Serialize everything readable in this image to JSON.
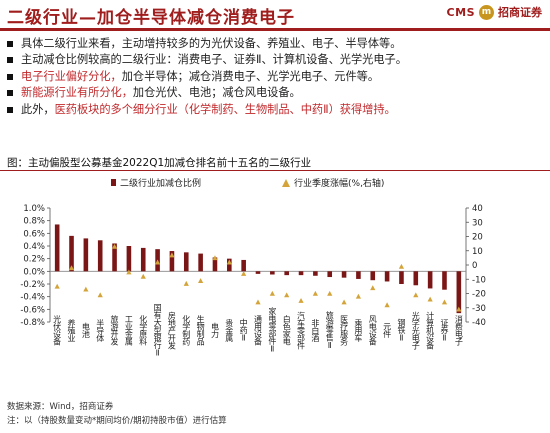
{
  "header": {
    "title": "二级行业—加仓半导体减仓消费电子",
    "logo_cms": "CMS",
    "logo_badge": "m",
    "logo_name": "招商证券"
  },
  "bullets": [
    {
      "parts": [
        {
          "text": "具体二级行业来看，主动增持较多的为光伏设备、养殖业、电子、半导体等。",
          "red": false
        }
      ]
    },
    {
      "parts": [
        {
          "text": "主动减仓比例较高的二级行业：消费电子、证券Ⅱ、计算机设备、光学光电子。",
          "red": false
        }
      ]
    },
    {
      "parts": [
        {
          "text": "电子行业偏好分化，",
          "red": true
        },
        {
          "text": "加仓半导体；减仓消费电子、光学光电子、元件等。",
          "red": false
        }
      ]
    },
    {
      "parts": [
        {
          "text": "新能源行业有所分化，",
          "red": true
        },
        {
          "text": "加仓光伏、电池；减仓风电设备。",
          "red": false
        }
      ]
    },
    {
      "parts": [
        {
          "text": "此外，",
          "red": false
        },
        {
          "text": "医药板块的多个细分行业（化学制药、生物制品、中药Ⅱ）获得增持。",
          "red": true
        }
      ]
    }
  ],
  "figure": {
    "caption": "图：主动偏股型公募基金2022Q1加减仓排名前十五名的二级行业",
    "source": "数据来源：Wind，招商证券",
    "note": "注：以（持股数量变动*期间均价/期初持股市值）进行估算"
  },
  "colors": {
    "bar": "#7b1616",
    "marker": "#d4a43a",
    "accent": "#a01d1d"
  },
  "chart_data": {
    "type": "bar",
    "categories": [
      "光伏设备",
      "养殖业",
      "电池",
      "半导体",
      "旅游开发",
      "工业金属",
      "化学原料",
      "国有大型银行Ⅱ",
      "房地产开发",
      "化学制药",
      "生物制品",
      "电力",
      "贵金属",
      "中药Ⅱ",
      "通用设备",
      "家电零部件Ⅱ",
      "白色家电",
      "汽车零部件",
      "非白酒",
      "旅游零售Ⅱ",
      "医疗服务",
      "乘用车",
      "风电设备",
      "元件",
      "钢铁Ⅱ",
      "光学光电子",
      "计算机设备",
      "证券Ⅱ",
      "消费电子"
    ],
    "series": [
      {
        "name": "二级行业加减仓比例",
        "axis": "left",
        "values": [
          0.74,
          0.56,
          0.52,
          0.49,
          0.44,
          0.4,
          0.37,
          0.35,
          0.32,
          0.3,
          0.28,
          0.22,
          0.2,
          0.18,
          -0.04,
          -0.05,
          -0.06,
          -0.06,
          -0.07,
          -0.09,
          -0.1,
          -0.12,
          -0.14,
          -0.16,
          -0.2,
          -0.22,
          -0.27,
          -0.29,
          -0.66
        ]
      },
      {
        "name": "行业季度涨幅(%,右轴)",
        "axis": "right",
        "values": [
          -15,
          -2,
          -17,
          -21,
          13,
          -5,
          -8,
          2,
          7,
          -13,
          -11,
          5,
          2,
          -6,
          -26,
          -20,
          -21,
          -25,
          -20,
          -20,
          -26,
          -22,
          -16,
          -28,
          -1,
          -21,
          -24,
          -26,
          -31
        ]
      }
    ],
    "ylim_left": [
      -0.8,
      1.0
    ],
    "yticks_left": [
      "-0.8%",
      "-0.6%",
      "-0.4%",
      "-0.2%",
      "0.0%",
      "0.2%",
      "0.4%",
      "0.6%",
      "0.8%",
      "1.0%"
    ],
    "ylim_right": [
      -40,
      40
    ],
    "yticks_right": [
      "-40",
      "-30",
      "-20",
      "-10",
      "0",
      "10",
      "20",
      "30",
      "40"
    ],
    "legend_position": "top-center",
    "grid": false
  }
}
